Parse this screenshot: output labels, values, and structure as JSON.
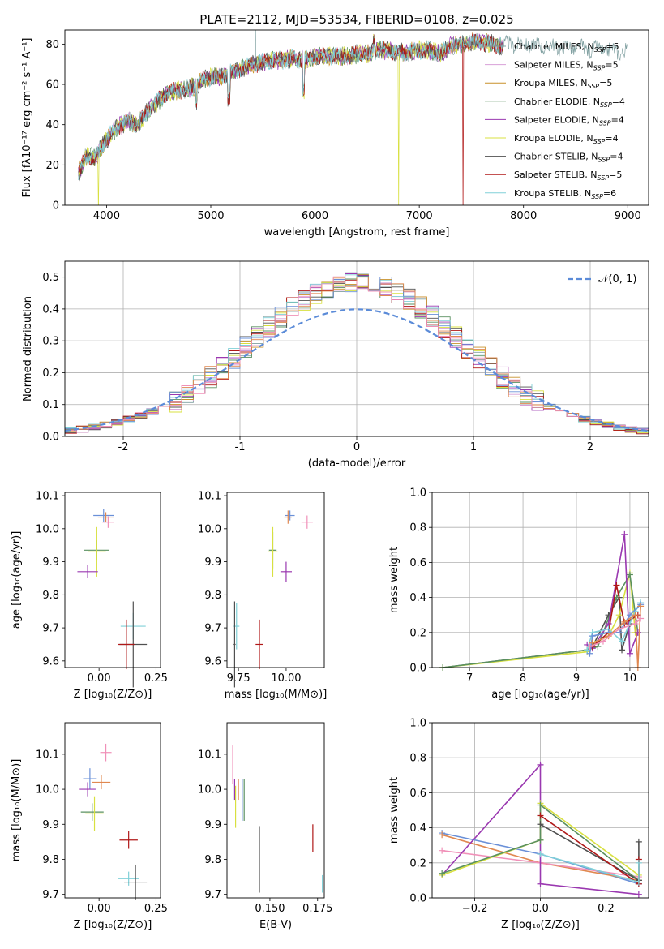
{
  "title": "PLATE=2112, MJD=53534, FIBERID=0108, z=0.025",
  "colors": [
    "#7f9fa0",
    "#d8a0d8",
    "#c8902a",
    "#5a9060",
    "#9a38b0",
    "#d8e040",
    "#505050",
    "#b01818",
    "#80d0d8",
    "#6a90d8",
    "#e08850",
    "#f090b8"
  ],
  "chart_data": [
    {
      "type": "line",
      "name": "spectrum",
      "title": "PLATE=2112, MJD=53534, FIBERID=0108, z=0.025",
      "xlabel": "wavelength [Angstrom, rest frame]",
      "ylabel": "Flux [fλ10⁻¹⁷ erg cm⁻² s⁻¹ A⁻¹]",
      "xlim": [
        3600,
        9200
      ],
      "ylim": [
        0,
        87
      ],
      "xticks": [
        4000,
        5000,
        6000,
        7000,
        8000,
        9000
      ],
      "yticks": [
        0,
        20,
        40,
        60,
        80
      ],
      "grid": false,
      "legend": "right",
      "continuum": [
        [
          3730,
          15
        ],
        [
          3800,
          24
        ],
        [
          3900,
          24
        ],
        [
          4000,
          33
        ],
        [
          4100,
          38
        ],
        [
          4200,
          42
        ],
        [
          4300,
          40
        ],
        [
          4400,
          47
        ],
        [
          4500,
          52
        ],
        [
          4600,
          56
        ],
        [
          4700,
          57
        ],
        [
          4800,
          58
        ],
        [
          4900,
          61
        ],
        [
          5000,
          64
        ],
        [
          5100,
          64
        ],
        [
          5200,
          66
        ],
        [
          5300,
          68
        ],
        [
          5400,
          70
        ],
        [
          5500,
          71
        ],
        [
          5600,
          72
        ],
        [
          5700,
          72
        ],
        [
          5800,
          73
        ],
        [
          5900,
          72
        ],
        [
          6000,
          74
        ],
        [
          6100,
          74
        ],
        [
          6200,
          74
        ],
        [
          6300,
          74
        ],
        [
          6400,
          75
        ],
        [
          6500,
          75
        ],
        [
          6600,
          77
        ],
        [
          6700,
          77
        ],
        [
          6800,
          76
        ],
        [
          6900,
          76
        ],
        [
          7000,
          77
        ],
        [
          7100,
          77
        ],
        [
          7200,
          75
        ],
        [
          7300,
          79
        ],
        [
          7400,
          80
        ],
        [
          7500,
          81
        ],
        [
          7600,
          81
        ],
        [
          7700,
          80
        ],
        [
          7800,
          79
        ],
        [
          7900,
          80
        ],
        [
          8000,
          80
        ],
        [
          8200,
          79
        ],
        [
          8500,
          78
        ],
        [
          8800,
          77
        ],
        [
          9000,
          76
        ]
      ],
      "series": [
        {
          "name": "Chabrier MILES, N",
          "sub": "SSP",
          "suffix": "=5"
        },
        {
          "name": "Salpeter MILES, N",
          "sub": "SSP",
          "suffix": "=5"
        },
        {
          "name": "Kroupa MILES, N",
          "sub": "SSP",
          "suffix": "=5"
        },
        {
          "name": "Chabrier ELODIE, N",
          "sub": "SSP",
          "suffix": "=4"
        },
        {
          "name": "Salpeter ELODIE, N",
          "sub": "SSP",
          "suffix": "=4"
        },
        {
          "name": "Kroupa ELODIE, N",
          "sub": "SSP",
          "suffix": "=4"
        },
        {
          "name": "Chabrier STELIB, N",
          "sub": "SSP",
          "suffix": "=4"
        },
        {
          "name": "Salpeter STELIB, N",
          "sub": "SSP",
          "suffix": "=5"
        },
        {
          "name": "Kroupa STELIB, N",
          "sub": "SSP",
          "suffix": "=6"
        }
      ]
    },
    {
      "type": "line",
      "name": "residual-histogram",
      "xlabel": "(data-model)/error",
      "ylabel": "Normed distribution",
      "xlim": [
        -2.5,
        2.5
      ],
      "ylim": [
        0,
        0.55
      ],
      "xticks": [
        -2,
        -1,
        0,
        1,
        2
      ],
      "yticks": [
        0.0,
        0.1,
        0.2,
        0.3,
        0.4,
        0.5
      ],
      "grid": true,
      "legend": "top-right",
      "gaussian_label": "𝒩(0, 1)",
      "bin_width": 0.1
    },
    {
      "type": "scatter",
      "name": "age-vs-metallicity",
      "xlabel": "Z [log₁₀(Z/Z⊙)]",
      "ylabel": "age  [log₁₀(age/yr)]",
      "xlim": [
        -0.15,
        0.27
      ],
      "ylim": [
        9.58,
        10.11
      ],
      "xticks": [
        0.0,
        0.25
      ],
      "xticklabels": [
        "0.00",
        "0.25"
      ],
      "yticks": [
        9.6,
        9.7,
        9.8,
        9.9,
        10.0,
        10.1
      ],
      "points": [
        {
          "x": 0.02,
          "y": 10.04,
          "dx": 0.09,
          "dy": 0.04,
          "c": 9
        },
        {
          "x": 0.03,
          "y": 10.035,
          "dx": 0.07,
          "dy": 0.03,
          "c": 10
        },
        {
          "x": 0.04,
          "y": 10.02,
          "dx": 0.05,
          "dy": 0.035,
          "c": 11
        },
        {
          "x": -0.01,
          "y": 9.935,
          "dx": 0.11,
          "dy": 0.06,
          "c": 3
        },
        {
          "x": -0.01,
          "y": 9.93,
          "dx": 0.08,
          "dy": 0.15,
          "c": 5
        },
        {
          "x": -0.05,
          "y": 9.87,
          "dx": 0.09,
          "dy": 0.04,
          "c": 4
        },
        {
          "x": 0.15,
          "y": 9.705,
          "dx": 0.11,
          "dy": 0.08,
          "c": 8
        },
        {
          "x": 0.15,
          "y": 9.65,
          "dx": 0.12,
          "dy": 0.26,
          "c": 6
        },
        {
          "x": 0.12,
          "y": 9.65,
          "dx": 0.07,
          "dy": 0.15,
          "c": 7
        }
      ]
    },
    {
      "type": "scatter",
      "name": "age-vs-mass",
      "xlabel": "mass [log₁₀(M/M⊙)]",
      "xlim": [
        9.69,
        10.2
      ],
      "ylim": [
        9.58,
        10.11
      ],
      "xticks": [
        9.75,
        10.0
      ],
      "xticklabels": [
        "9.75",
        "10.00"
      ],
      "yticks": [
        9.6,
        9.7,
        9.8,
        9.9,
        10.0,
        10.1
      ],
      "points": [
        {
          "x": 10.02,
          "y": 10.04,
          "dx": 0.05,
          "dy": 0.03,
          "c": 9
        },
        {
          "x": 10.01,
          "y": 10.035,
          "dx": 0.04,
          "dy": 0.04,
          "c": 10
        },
        {
          "x": 10.11,
          "y": 10.02,
          "dx": 0.06,
          "dy": 0.04,
          "c": 11
        },
        {
          "x": 9.93,
          "y": 9.935,
          "dx": 0.04,
          "dy": 0.11,
          "c": 3
        },
        {
          "x": 9.93,
          "y": 9.93,
          "dx": 0.05,
          "dy": 0.15,
          "c": 5
        },
        {
          "x": 10.0,
          "y": 9.87,
          "dx": 0.06,
          "dy": 0.06,
          "c": 4
        },
        {
          "x": 9.74,
          "y": 9.705,
          "dx": 0.03,
          "dy": 0.14,
          "c": 8
        },
        {
          "x": 9.73,
          "y": 9.65,
          "dx": 0.01,
          "dy": 0.26,
          "c": 6
        },
        {
          "x": 9.86,
          "y": 9.65,
          "dx": 0.04,
          "dy": 0.15,
          "c": 7
        }
      ]
    },
    {
      "type": "line",
      "name": "mass-weight-vs-age",
      "xlabel": "age  [log₁₀(age/yr)]",
      "ylabel": "mass weight",
      "xlim": [
        6.3,
        10.35
      ],
      "ylim": [
        0,
        1.0
      ],
      "xticks": [
        7,
        8,
        9,
        10
      ],
      "yticks": [
        0.0,
        0.2,
        0.4,
        0.6,
        0.8,
        1.0
      ],
      "grid": true,
      "lines": [
        {
          "c": 6,
          "pts": [
            [
              6.5,
              0.0
            ],
            [
              9.2,
              0.1
            ],
            [
              9.3,
              0.12
            ],
            [
              9.6,
              0.3
            ],
            [
              9.8,
              0.4
            ],
            [
              9.85,
              0.1
            ],
            [
              10.0,
              0.25
            ]
          ]
        },
        {
          "c": 5,
          "pts": [
            [
              6.5,
              0.0
            ],
            [
              9.2,
              0.09
            ],
            [
              9.4,
              0.15
            ],
            [
              9.6,
              0.18
            ],
            [
              9.8,
              0.3
            ],
            [
              10.0,
              0.54
            ],
            [
              10.1,
              0.2
            ]
          ]
        },
        {
          "c": 3,
          "pts": [
            [
              6.5,
              0.0
            ],
            [
              9.2,
              0.1
            ],
            [
              9.4,
              0.12
            ],
            [
              9.75,
              0.4
            ],
            [
              10.0,
              0.53
            ],
            [
              10.15,
              0.2
            ]
          ]
        },
        {
          "c": 4,
          "pts": [
            [
              9.2,
              0.13
            ],
            [
              9.3,
              0.11
            ],
            [
              9.6,
              0.25
            ],
            [
              9.9,
              0.76
            ],
            [
              10.0,
              0.08
            ],
            [
              10.15,
              0.2
            ]
          ]
        },
        {
          "c": 7,
          "pts": [
            [
              9.3,
              0.12
            ],
            [
              9.6,
              0.2
            ],
            [
              9.75,
              0.47
            ],
            [
              9.9,
              0.25
            ],
            [
              10.15,
              0.3
            ]
          ]
        },
        {
          "c": 8,
          "pts": [
            [
              9.2,
              0.1
            ],
            [
              9.3,
              0.2
            ],
            [
              9.6,
              0.22
            ],
            [
              9.85,
              0.15
            ],
            [
              10.1,
              0.32
            ],
            [
              10.2,
              0.37
            ]
          ]
        },
        {
          "c": 9,
          "pts": [
            [
              9.25,
              0.08
            ],
            [
              9.3,
              0.18
            ],
            [
              9.6,
              0.2
            ],
            [
              9.8,
              0.2
            ],
            [
              10.0,
              0.3
            ],
            [
              10.2,
              0.36
            ]
          ]
        },
        {
          "c": 10,
          "pts": [
            [
              9.3,
              0.14
            ],
            [
              9.6,
              0.18
            ],
            [
              9.9,
              0.26
            ],
            [
              10.1,
              0.3
            ],
            [
              10.15,
              0.0
            ],
            [
              10.2,
              0.35
            ]
          ]
        },
        {
          "c": 11,
          "pts": [
            [
              9.25,
              0.12
            ],
            [
              9.5,
              0.15
            ],
            [
              9.8,
              0.22
            ],
            [
              10.1,
              0.25
            ],
            [
              10.2,
              0.28
            ]
          ]
        }
      ]
    },
    {
      "type": "scatter",
      "name": "mass-vs-metallicity",
      "xlabel": "Z [log₁₀(Z/Z⊙)]",
      "ylabel": "mass [log₁₀(M/M⊙)]",
      "xlim": [
        -0.15,
        0.27
      ],
      "ylim": [
        9.69,
        10.19
      ],
      "xticks": [
        0.0,
        0.25
      ],
      "xticklabels": [
        "0.00",
        "0.25"
      ],
      "yticks": [
        9.7,
        9.8,
        9.9,
        10.0,
        10.1
      ],
      "points": [
        {
          "x": 0.03,
          "y": 10.105,
          "dx": 0.05,
          "dy": 0.05,
          "c": 11
        },
        {
          "x": -0.04,
          "y": 10.03,
          "dx": 0.06,
          "dy": 0.06,
          "c": 9
        },
        {
          "x": 0.01,
          "y": 10.02,
          "dx": 0.08,
          "dy": 0.04,
          "c": 10
        },
        {
          "x": -0.05,
          "y": 10.0,
          "dx": 0.07,
          "dy": 0.04,
          "c": 4
        },
        {
          "x": -0.03,
          "y": 9.935,
          "dx": 0.1,
          "dy": 0.05,
          "c": 3
        },
        {
          "x": -0.02,
          "y": 9.93,
          "dx": 0.08,
          "dy": 0.1,
          "c": 5
        },
        {
          "x": 0.13,
          "y": 9.855,
          "dx": 0.08,
          "dy": 0.05,
          "c": 7
        },
        {
          "x": 0.13,
          "y": 9.745,
          "dx": 0.09,
          "dy": 0.04,
          "c": 8
        },
        {
          "x": 0.16,
          "y": 9.735,
          "dx": 0.1,
          "dy": 0.1,
          "c": 6
        }
      ]
    },
    {
      "type": "scatter",
      "name": "mass-vs-extinction",
      "xlabel": "E(B-V)",
      "xlim": [
        0.1275,
        0.1785
      ],
      "ylim": [
        9.69,
        10.19
      ],
      "xticks": [
        0.15,
        0.175
      ],
      "xticklabels": [
        "0.150",
        "0.175"
      ],
      "yticks": [
        9.7,
        9.8,
        9.9,
        10.0,
        10.1
      ],
      "points": [
        {
          "x": 0.1305,
          "y": 10.07,
          "dx": 0,
          "dy": 0.11,
          "c": 11
        },
        {
          "x": 0.1315,
          "y": 10.0,
          "dx": 0,
          "dy": 0.06,
          "c": 4
        },
        {
          "x": 0.132,
          "y": 9.95,
          "dx": 0,
          "dy": 0.12,
          "c": 5
        },
        {
          "x": 0.1335,
          "y": 10.0,
          "dx": 0,
          "dy": 0.06,
          "c": 10
        },
        {
          "x": 0.1355,
          "y": 9.97,
          "dx": 0,
          "dy": 0.12,
          "c": 9
        },
        {
          "x": 0.1365,
          "y": 9.97,
          "dx": 0,
          "dy": 0.12,
          "c": 3
        },
        {
          "x": 0.1445,
          "y": 9.8,
          "dx": 0,
          "dy": 0.19,
          "c": 6
        },
        {
          "x": 0.1725,
          "y": 9.86,
          "dx": 0,
          "dy": 0.08,
          "c": 7
        },
        {
          "x": 0.1775,
          "y": 9.73,
          "dx": 0,
          "dy": 0.05,
          "c": 8
        }
      ]
    },
    {
      "type": "line",
      "name": "mass-weight-vs-metallicity",
      "xlabel": "Z [log₁₀(Z/Z⊙)]",
      "ylabel": "mass weight",
      "xlim": [
        -0.33,
        0.33
      ],
      "ylim": [
        0,
        1.0
      ],
      "xticks": [
        -0.2,
        0.0,
        0.2
      ],
      "xticklabels": [
        "−0.2",
        "0.0",
        "0.2"
      ],
      "yticks": [
        0.0,
        0.2,
        0.4,
        0.6,
        0.8,
        1.0
      ],
      "grid": true,
      "lines": [
        {
          "c": 9,
          "pts": [
            [
              -0.3,
              0.37
            ],
            [
              0.0,
              0.25
            ],
            [
              0.3,
              0.08
            ]
          ]
        },
        {
          "c": 10,
          "pts": [
            [
              -0.3,
              0.36
            ],
            [
              0.0,
              0.2
            ],
            [
              0.3,
              0.1
            ]
          ]
        },
        {
          "c": 11,
          "pts": [
            [
              -0.3,
              0.27
            ],
            [
              0.0,
              0.2
            ],
            [
              0.3,
              0.12
            ]
          ]
        },
        {
          "c": 4,
          "pts": [
            [
              -0.3,
              0.13
            ],
            [
              0.0,
              0.76
            ],
            [
              0.0,
              0.08
            ],
            [
              0.3,
              0.02
            ]
          ]
        },
        {
          "c": 5,
          "pts": [
            [
              -0.3,
              0.13
            ],
            [
              0.0,
              0.33
            ],
            [
              0.0,
              0.54
            ],
            [
              0.3,
              0.13
            ]
          ]
        },
        {
          "c": 3,
          "pts": [
            [
              -0.3,
              0.14
            ],
            [
              0.0,
              0.33
            ],
            [
              0.0,
              0.53
            ],
            [
              0.3,
              0.1
            ]
          ]
        },
        {
          "c": 6,
          "pts": [
            [
              0.0,
              0.42
            ],
            [
              0.3,
              0.1
            ],
            [
              0.3,
              0.32
            ]
          ]
        },
        {
          "c": 7,
          "pts": [
            [
              0.0,
              0.47
            ],
            [
              0.3,
              0.08
            ],
            [
              0.3,
              0.22
            ]
          ]
        },
        {
          "c": 8,
          "pts": [
            [
              0.0,
              0.25
            ],
            [
              0.3,
              0.09
            ],
            [
              0.3,
              0.2
            ]
          ]
        }
      ]
    }
  ]
}
